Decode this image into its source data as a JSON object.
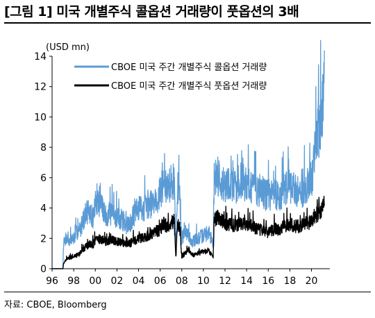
{
  "title": "[그림 1] 미국 개별주식 콜옵션 거래량이 풋옵션의 3배",
  "source": "자료: CBOE, Bloomberg",
  "colors": {
    "call": "#5b9bd5",
    "put": "#000000",
    "axis": "#000000"
  },
  "chart_data": {
    "type": "line",
    "ylabel": "(USD mn)",
    "ylim": [
      0,
      14
    ],
    "yticks": [
      "0",
      "2",
      "4",
      "6",
      "8",
      "10",
      "12",
      "14"
    ],
    "xlim": [
      1996,
      2021.7
    ],
    "xticks": [
      {
        "year": 1996,
        "label": "96"
      },
      {
        "year": 1998,
        "label": "98"
      },
      {
        "year": 2000,
        "label": "00"
      },
      {
        "year": 2002,
        "label": "02"
      },
      {
        "year": 2004,
        "label": "04"
      },
      {
        "year": 2006,
        "label": "06"
      },
      {
        "year": 2008,
        "label": "08"
      },
      {
        "year": 2010,
        "label": "10"
      },
      {
        "year": 2012,
        "label": "12"
      },
      {
        "year": 2014,
        "label": "14"
      },
      {
        "year": 2016,
        "label": "16"
      },
      {
        "year": 2018,
        "label": "18"
      },
      {
        "year": 2020,
        "label": "20"
      }
    ],
    "grid": false,
    "legend_position": "top",
    "series": [
      {
        "name": "CBOE 미국 주간 개별주식 콜옵션 거래량",
        "color": "#5b9bd5",
        "x": [
          1996.0,
          1997.0,
          1997.05,
          1997.3,
          1997.6,
          1998.0,
          1998.3,
          1998.6,
          1998.8,
          1999.2,
          1999.5,
          1999.8,
          2000.0,
          2000.2,
          2000.6,
          2001.0,
          2001.3,
          2001.6,
          2002.0,
          2002.5,
          2003.0,
          2003.5,
          2004.0,
          2004.5,
          2005.0,
          2005.5,
          2006.0,
          2006.3,
          2006.6,
          2007.0,
          2007.3,
          2007.45,
          2007.6,
          2007.8,
          2008.0,
          2008.3,
          2008.6,
          2009.0,
          2009.5,
          2010.0,
          2010.5,
          2010.9,
          2011.0,
          2011.3,
          2011.6,
          2012.0,
          2012.5,
          2013.0,
          2013.5,
          2014.0,
          2014.5,
          2015.0,
          2015.5,
          2016.0,
          2016.5,
          2017.0,
          2017.5,
          2018.0,
          2018.5,
          2019.0,
          2019.5,
          2020.0,
          2020.2,
          2020.5,
          2020.8,
          2021.0,
          2021.2
        ],
        "y": [
          0.0,
          0.0,
          1.6,
          2.0,
          1.8,
          2.0,
          2.4,
          2.6,
          3.0,
          3.8,
          3.6,
          3.4,
          4.2,
          4.6,
          4.0,
          3.4,
          3.6,
          3.6,
          3.4,
          3.2,
          2.8,
          3.4,
          4.0,
          4.0,
          4.2,
          4.4,
          5.0,
          5.6,
          5.2,
          5.6,
          5.8,
          1.4,
          5.4,
          5.0,
          2.0,
          2.4,
          2.2,
          1.8,
          2.0,
          2.2,
          2.4,
          1.6,
          6.0,
          6.2,
          5.8,
          5.4,
          5.6,
          5.4,
          5.8,
          5.6,
          5.4,
          5.2,
          5.0,
          4.8,
          5.0,
          4.8,
          5.2,
          5.4,
          5.2,
          5.0,
          5.4,
          5.8,
          7.0,
          9.0,
          9.6,
          10.4,
          12.5
        ]
      },
      {
        "name": "CBOE 미국 주간 개별주식 풋옵션 거래량",
        "color": "#000000",
        "x": [
          1996.0,
          1997.0,
          1997.05,
          1997.3,
          1997.6,
          1998.0,
          1998.3,
          1998.6,
          1998.8,
          1999.2,
          1999.5,
          1999.8,
          2000.0,
          2000.2,
          2000.6,
          2001.0,
          2001.3,
          2001.6,
          2002.0,
          2002.5,
          2003.0,
          2003.5,
          2004.0,
          2004.5,
          2005.0,
          2005.5,
          2006.0,
          2006.3,
          2006.6,
          2007.0,
          2007.3,
          2007.45,
          2007.6,
          2007.8,
          2008.0,
          2008.3,
          2008.6,
          2009.0,
          2009.5,
          2010.0,
          2010.5,
          2010.9,
          2011.0,
          2011.3,
          2011.6,
          2012.0,
          2012.5,
          2013.0,
          2013.5,
          2014.0,
          2014.5,
          2015.0,
          2015.5,
          2016.0,
          2016.5,
          2017.0,
          2017.5,
          2018.0,
          2018.5,
          2019.0,
          2019.5,
          2020.0,
          2020.2,
          2020.5,
          2020.8,
          2021.0,
          2021.2
        ],
        "y": [
          0.0,
          0.0,
          0.3,
          0.6,
          0.7,
          0.8,
          0.9,
          1.0,
          1.2,
          1.5,
          1.6,
          1.6,
          1.8,
          2.0,
          1.9,
          1.8,
          1.9,
          1.9,
          1.8,
          1.7,
          1.6,
          1.8,
          2.0,
          2.1,
          2.2,
          2.4,
          2.6,
          3.0,
          2.8,
          3.0,
          3.2,
          0.6,
          3.0,
          2.8,
          0.8,
          1.0,
          1.1,
          0.9,
          1.0,
          1.1,
          1.2,
          0.7,
          3.2,
          3.4,
          3.2,
          3.0,
          2.9,
          2.8,
          3.0,
          3.0,
          2.8,
          2.6,
          2.5,
          2.4,
          2.6,
          2.6,
          2.8,
          2.9,
          2.8,
          2.8,
          3.0,
          3.1,
          3.4,
          3.6,
          3.8,
          3.9,
          4.3
        ]
      }
    ]
  }
}
